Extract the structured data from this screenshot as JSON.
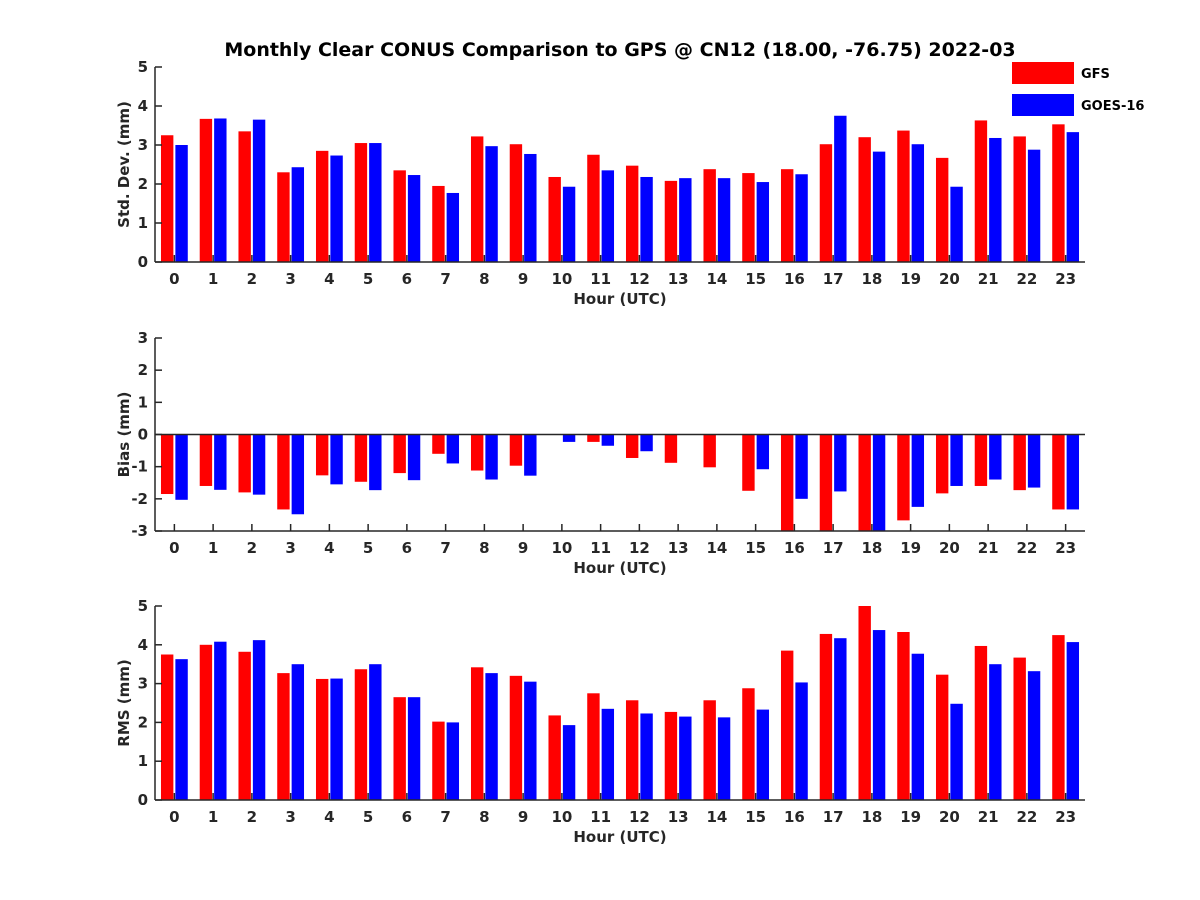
{
  "title": "Monthly Clear CONUS Comparison to GPS @ CN12 (18.00, -76.75) 2022-03",
  "legend": {
    "placement": "top-right",
    "entries": [
      {
        "name": "GFS",
        "color": "#ff0000"
      },
      {
        "name": "GOES-16",
        "color": "#0000ff"
      }
    ]
  },
  "chart_data": [
    {
      "type": "bar",
      "xlabel": "Hour (UTC)",
      "ylabel": "Std. Dev. (mm)",
      "ylim": [
        0,
        5
      ],
      "yticks": [
        0,
        1,
        2,
        3,
        4,
        5
      ],
      "categories": [
        "0",
        "1",
        "2",
        "3",
        "4",
        "5",
        "6",
        "7",
        "8",
        "9",
        "10",
        "11",
        "12",
        "13",
        "14",
        "15",
        "16",
        "17",
        "18",
        "19",
        "20",
        "21",
        "22",
        "23"
      ],
      "series": [
        {
          "name": "GFS",
          "color": "#ff0000",
          "values": [
            3.25,
            3.67,
            3.35,
            2.3,
            2.85,
            3.05,
            2.35,
            1.95,
            3.22,
            3.02,
            2.18,
            2.75,
            2.47,
            2.08,
            2.38,
            2.28,
            2.38,
            3.02,
            3.2,
            3.37,
            2.67,
            3.63,
            3.22,
            3.53
          ]
        },
        {
          "name": "GOES-16",
          "color": "#0000ff",
          "values": [
            3.0,
            3.68,
            3.65,
            2.43,
            2.73,
            3.05,
            2.23,
            1.77,
            2.97,
            2.77,
            1.93,
            2.35,
            2.18,
            2.15,
            2.15,
            2.05,
            2.25,
            3.75,
            2.83,
            3.02,
            1.93,
            3.18,
            2.88,
            3.33
          ]
        }
      ]
    },
    {
      "type": "bar",
      "xlabel": "Hour (UTC)",
      "ylabel": "Bias (mm)",
      "ylim": [
        -3,
        3
      ],
      "yticks": [
        -3,
        -2,
        -1,
        0,
        1,
        2,
        3
      ],
      "zero_line": true,
      "categories": [
        "0",
        "1",
        "2",
        "3",
        "4",
        "5",
        "6",
        "7",
        "8",
        "9",
        "10",
        "11",
        "12",
        "13",
        "14",
        "15",
        "16",
        "17",
        "18",
        "19",
        "20",
        "21",
        "22",
        "23"
      ],
      "series": [
        {
          "name": "GFS",
          "color": "#ff0000",
          "values": [
            -1.85,
            -1.6,
            -1.8,
            -2.33,
            -1.27,
            -1.47,
            -1.2,
            -0.6,
            -1.12,
            -0.97,
            0.0,
            -0.23,
            -0.73,
            -0.88,
            -1.02,
            -1.75,
            -3.2,
            -3.2,
            -3.2,
            -2.67,
            -1.83,
            -1.6,
            -1.73,
            -2.33
          ]
        },
        {
          "name": "GOES-16",
          "color": "#0000ff",
          "values": [
            -2.03,
            -1.72,
            -1.87,
            -2.48,
            -1.55,
            -1.73,
            -1.42,
            -0.9,
            -1.4,
            -1.28,
            -0.23,
            -0.35,
            -0.52,
            0.0,
            0.0,
            -1.08,
            -2.0,
            -1.77,
            -3.2,
            -2.25,
            -1.6,
            -1.4,
            -1.65,
            -2.33
          ]
        }
      ]
    },
    {
      "type": "bar",
      "xlabel": "Hour (UTC)",
      "ylabel": "RMS (mm)",
      "ylim": [
        0,
        5
      ],
      "yticks": [
        0,
        1,
        2,
        3,
        4,
        5
      ],
      "categories": [
        "0",
        "1",
        "2",
        "3",
        "4",
        "5",
        "6",
        "7",
        "8",
        "9",
        "10",
        "11",
        "12",
        "13",
        "14",
        "15",
        "16",
        "17",
        "18",
        "19",
        "20",
        "21",
        "22",
        "23"
      ],
      "series": [
        {
          "name": "GFS",
          "color": "#ff0000",
          "values": [
            3.75,
            4.0,
            3.82,
            3.27,
            3.12,
            3.37,
            2.65,
            2.02,
            3.42,
            3.2,
            2.18,
            2.75,
            2.57,
            2.27,
            2.57,
            2.88,
            3.85,
            4.28,
            5.0,
            4.33,
            3.23,
            3.97,
            3.67,
            4.25
          ]
        },
        {
          "name": "GOES-16",
          "color": "#0000ff",
          "values": [
            3.63,
            4.08,
            4.12,
            3.5,
            3.13,
            3.5,
            2.65,
            2.0,
            3.27,
            3.05,
            1.93,
            2.35,
            2.23,
            2.15,
            2.13,
            2.33,
            3.03,
            4.17,
            4.38,
            3.77,
            2.48,
            3.5,
            3.32,
            4.07
          ]
        }
      ]
    }
  ]
}
